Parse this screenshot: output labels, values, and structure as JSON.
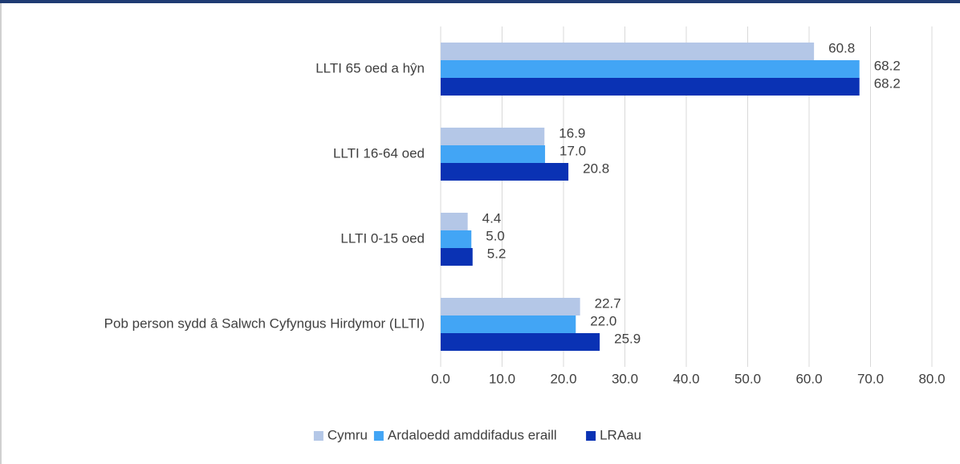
{
  "chart_data": {
    "type": "hbar",
    "categories": [
      "LLTI 65 oed a hŷn",
      "LLTI 16-64 oed",
      "LLTI 0-15 oed",
      "Pob person sydd â Salwch Cyfyngus Hirdymor (LLTI)"
    ],
    "series": [
      {
        "name": "Cymru",
        "color": "#b4c7e7",
        "values": [
          60.8,
          16.9,
          4.4,
          22.7
        ],
        "value_labels": [
          "60.8",
          "16.9",
          "4.4",
          "22.7"
        ]
      },
      {
        "name": "Ardaloedd amddifadus eraill",
        "color": "#42a5f5",
        "values": [
          68.2,
          17.0,
          5.0,
          22.0
        ],
        "value_labels": [
          "68.2",
          "17.0",
          "5.0",
          "22.0"
        ]
      },
      {
        "name": "LRAau",
        "color": "#0a32b4",
        "values": [
          68.2,
          20.8,
          5.2,
          25.9
        ],
        "value_labels": [
          "68.2",
          "20.8",
          "5.2",
          "25.9"
        ]
      }
    ],
    "xlim": [
      0,
      80
    ],
    "xticks": [
      {
        "value": 0,
        "label": "0.0"
      },
      {
        "value": 10,
        "label": "10.0"
      },
      {
        "value": 20,
        "label": "20.0"
      },
      {
        "value": 30,
        "label": "30.0"
      },
      {
        "value": 40,
        "label": "40.0"
      },
      {
        "value": 50,
        "label": "50.0"
      },
      {
        "value": 60,
        "label": "60.0"
      },
      {
        "value": 70,
        "label": "70.0"
      },
      {
        "value": 80,
        "label": "80.0"
      }
    ],
    "grid": true,
    "legend": "bottom"
  }
}
